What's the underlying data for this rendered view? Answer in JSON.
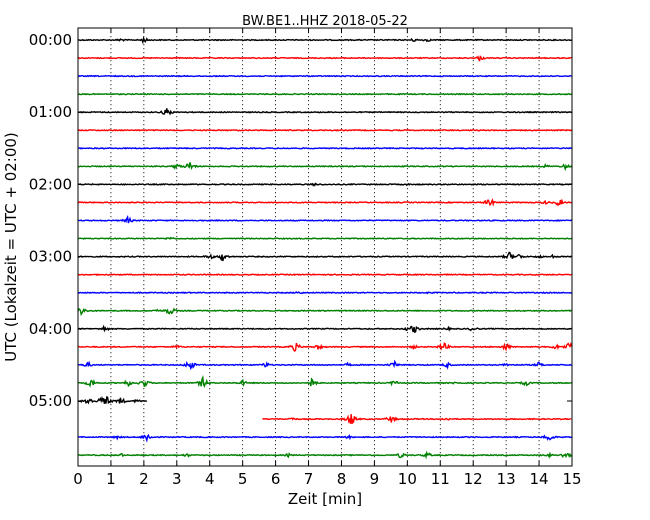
{
  "chart_data": {
    "type": "line",
    "title": "BW.BE1..HHZ 2018-05-22",
    "xlabel": "Zeit  [min]",
    "ylabel": "UTC (Lokalzeit = UTC + 02:00)",
    "xlim": [
      0,
      15
    ],
    "x_ticks": [
      0,
      1,
      2,
      3,
      4,
      5,
      6,
      7,
      8,
      9,
      10,
      11,
      12,
      13,
      14,
      15
    ],
    "grid": "vertical dotted lines at each minute",
    "y_tick_labels": [
      "00:00",
      "01:00",
      "02:00",
      "03:00",
      "04:00",
      "05:00"
    ],
    "trace_interval_min": 15,
    "trace_colors": [
      "#000000",
      "#ff0000",
      "#0000ff",
      "#008000"
    ],
    "series": [
      {
        "start": "00:00",
        "end_min": 15,
        "events": [
          {
            "x": 1.3,
            "amp": 2
          },
          {
            "x": 2.0,
            "amp": 3
          },
          {
            "x": 10.2,
            "amp": 2
          },
          {
            "x": 10.6,
            "amp": 2
          }
        ]
      },
      {
        "start": "00:15",
        "end_min": 15,
        "events": [
          {
            "x": 12.2,
            "amp": 3
          }
        ]
      },
      {
        "start": "00:30",
        "end_min": 15,
        "events": []
      },
      {
        "start": "00:45",
        "end_min": 15,
        "events": []
      },
      {
        "start": "01:00",
        "end_min": 15,
        "events": [
          {
            "x": 2.7,
            "amp": 5
          }
        ]
      },
      {
        "start": "01:15",
        "end_min": 15,
        "events": []
      },
      {
        "start": "01:30",
        "end_min": 15,
        "events": []
      },
      {
        "start": "01:45",
        "end_min": 15,
        "events": [
          {
            "x": 3.0,
            "amp": 3
          },
          {
            "x": 3.4,
            "amp": 5
          },
          {
            "x": 14.2,
            "amp": 2
          },
          {
            "x": 14.8,
            "amp": 3
          }
        ]
      },
      {
        "start": "02:00",
        "end_min": 15,
        "events": [
          {
            "x": 7.2,
            "amp": 2
          },
          {
            "x": 10.0,
            "amp": 1
          }
        ]
      },
      {
        "start": "02:15",
        "end_min": 15,
        "events": [
          {
            "x": 12.5,
            "amp": 5
          },
          {
            "x": 14.2,
            "amp": 2
          },
          {
            "x": 14.6,
            "amp": 4
          }
        ]
      },
      {
        "start": "02:30",
        "end_min": 15,
        "events": [
          {
            "x": 1.5,
            "amp": 4
          }
        ]
      },
      {
        "start": "02:45",
        "end_min": 15,
        "events": [
          {
            "x": 2.8,
            "amp": 2
          }
        ]
      },
      {
        "start": "03:00",
        "end_min": 15,
        "events": [
          {
            "x": 4.0,
            "amp": 3
          },
          {
            "x": 4.4,
            "amp": 5
          },
          {
            "x": 13.1,
            "amp": 5
          },
          {
            "x": 13.4,
            "amp": 3
          },
          {
            "x": 14.0,
            "amp": 2
          },
          {
            "x": 14.4,
            "amp": 2
          }
        ]
      },
      {
        "start": "03:15",
        "end_min": 15,
        "events": []
      },
      {
        "start": "03:30",
        "end_min": 15,
        "events": [
          {
            "x": 6.7,
            "amp": 2
          },
          {
            "x": 10.6,
            "amp": 1
          }
        ]
      },
      {
        "start": "03:45",
        "end_min": 15,
        "events": [
          {
            "x": 0.1,
            "amp": 5
          },
          {
            "x": 2.4,
            "amp": 2
          },
          {
            "x": 2.8,
            "amp": 5
          }
        ]
      },
      {
        "start": "04:00",
        "end_min": 15,
        "events": [
          {
            "x": 0.8,
            "amp": 3
          },
          {
            "x": 10.0,
            "amp": 2
          },
          {
            "x": 10.2,
            "amp": 5
          },
          {
            "x": 11.2,
            "amp": 2
          },
          {
            "x": 12.0,
            "amp": 3
          }
        ]
      },
      {
        "start": "04:15",
        "end_min": 15,
        "events": [
          {
            "x": 3.0,
            "amp": 2
          },
          {
            "x": 6.6,
            "amp": 5
          },
          {
            "x": 7.3,
            "amp": 3
          },
          {
            "x": 10.2,
            "amp": 2
          },
          {
            "x": 11.1,
            "amp": 5
          },
          {
            "x": 13.0,
            "amp": 4
          },
          {
            "x": 14.5,
            "amp": 3
          },
          {
            "x": 14.9,
            "amp": 5
          }
        ]
      },
      {
        "start": "04:30",
        "end_min": 15,
        "events": [
          {
            "x": 0.3,
            "amp": 3
          },
          {
            "x": 3.4,
            "amp": 6
          },
          {
            "x": 5.7,
            "amp": 3
          },
          {
            "x": 8.2,
            "amp": 2
          },
          {
            "x": 9.6,
            "amp": 4
          },
          {
            "x": 11.2,
            "amp": 3
          },
          {
            "x": 13.0,
            "amp": 2
          },
          {
            "x": 14.0,
            "amp": 3
          }
        ]
      },
      {
        "start": "04:45",
        "end_min": 15,
        "events": [
          {
            "x": 0.4,
            "amp": 5
          },
          {
            "x": 1.5,
            "amp": 4
          },
          {
            "x": 2.0,
            "amp": 5
          },
          {
            "x": 3.8,
            "amp": 6
          },
          {
            "x": 5.0,
            "amp": 3
          },
          {
            "x": 7.1,
            "amp": 5
          },
          {
            "x": 9.6,
            "amp": 3
          },
          {
            "x": 11.5,
            "amp": 2
          },
          {
            "x": 13.6,
            "amp": 3
          }
        ]
      },
      {
        "start": "05:00",
        "end_min": 2.1,
        "events": [
          {
            "x": 0.3,
            "amp": 5
          },
          {
            "x": 0.8,
            "amp": 9
          },
          {
            "x": 1.3,
            "amp": 4
          },
          {
            "x": 1.8,
            "amp": 2
          }
        ]
      },
      {
        "start": "05:15",
        "end_min": 15,
        "start_min": 5.6,
        "events": [
          {
            "x": 6.5,
            "amp": 2
          },
          {
            "x": 8.3,
            "amp": 7
          },
          {
            "x": 9.5,
            "amp": 4
          },
          {
            "x": 11.2,
            "amp": 2
          }
        ]
      },
      {
        "start": "05:30",
        "end_min": 15,
        "events": [
          {
            "x": 1.2,
            "amp": 2
          },
          {
            "x": 2.1,
            "amp": 5
          },
          {
            "x": 8.2,
            "amp": 2
          },
          {
            "x": 14.3,
            "amp": 5
          }
        ]
      },
      {
        "start": "05:45",
        "end_min": 15,
        "events": [
          {
            "x": 1.3,
            "amp": 2
          },
          {
            "x": 3.3,
            "amp": 2
          },
          {
            "x": 6.4,
            "amp": 2
          },
          {
            "x": 9.8,
            "amp": 3
          },
          {
            "x": 10.6,
            "amp": 3
          },
          {
            "x": 14.3,
            "amp": 2
          },
          {
            "x": 14.8,
            "amp": 4
          }
        ]
      }
    ]
  }
}
